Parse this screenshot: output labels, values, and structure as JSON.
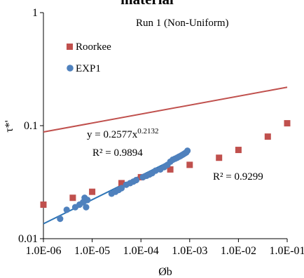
{
  "chart_data": {
    "type": "scatter",
    "title": "material",
    "subtitle": "Run 1 (Non-Uniform)",
    "xlabel": "Øb",
    "ylabel": "τ*'",
    "x_scale": "log",
    "y_scale": "log",
    "xlim": [
      1e-06,
      0.1
    ],
    "ylim": [
      0.01,
      1
    ],
    "x_tick_labels": [
      "1.0E-06",
      "1.0E-05",
      "1.0E-04",
      "1.0E-03",
      "1.0E-02",
      "1.0E-01"
    ],
    "y_tick_labels": [
      "0.01",
      "0.1",
      "1"
    ],
    "grid": false,
    "legend_position": "top-left",
    "series": [
      {
        "name": "Roorkee",
        "marker": "square",
        "color": "#c0504d",
        "x": [
          1e-06,
          4e-06,
          1e-05,
          4e-05,
          0.0001,
          0.0004,
          0.001,
          0.004,
          0.01,
          0.04,
          0.1
        ],
        "y": [
          0.02,
          0.023,
          0.026,
          0.031,
          0.035,
          0.041,
          0.045,
          0.052,
          0.061,
          0.08,
          0.105
        ]
      },
      {
        "name": "EXP1",
        "marker": "circle",
        "color": "#4f81bd",
        "x": [
          2.2e-06,
          3e-06,
          4.5e-06,
          5.5e-06,
          6.5e-06,
          7e-06,
          7.5e-06,
          8e-06,
          2.5e-05,
          3e-05,
          3.5e-05,
          4e-05,
          5e-05,
          6e-05,
          7e-05,
          8e-05,
          0.00011,
          0.00013,
          0.00015,
          0.00017,
          0.0002,
          0.00025,
          0.0003,
          0.00035,
          0.0004,
          0.00045,
          0.0005,
          0.00055,
          0.0006,
          0.00065,
          0.0007,
          0.00075,
          0.0008,
          0.00085,
          0.0009
        ],
        "y": [
          0.015,
          0.018,
          0.019,
          0.02,
          0.021,
          0.023,
          0.019,
          0.022,
          0.025,
          0.026,
          0.027,
          0.028,
          0.03,
          0.031,
          0.032,
          0.033,
          0.035,
          0.036,
          0.037,
          0.038,
          0.04,
          0.041,
          0.043,
          0.045,
          0.048,
          0.05,
          0.051,
          0.052,
          0.053,
          0.054,
          0.055,
          0.056,
          0.057,
          0.058,
          0.06
        ]
      }
    ],
    "trendlines": [
      {
        "series": "Roorkee",
        "color": "#c0504d",
        "coef": 0.2625,
        "exp": 0.0792,
        "x_range": [
          1e-06,
          0.1
        ],
        "r2_text": "R² = 0.9299"
      },
      {
        "series": "EXP1",
        "color": "#2e75b6",
        "coef": 0.2577,
        "exp": 0.2132,
        "x_range": [
          1e-06,
          0.0009
        ],
        "r2_text": "R² = 0.9894"
      }
    ],
    "annotations": {
      "equation_base": "y = 0.2577x",
      "equation_exp": "0.2132",
      "r2_exp1": "R² = 0.9894",
      "r2_roorkee": "R² = 0.9299"
    }
  }
}
